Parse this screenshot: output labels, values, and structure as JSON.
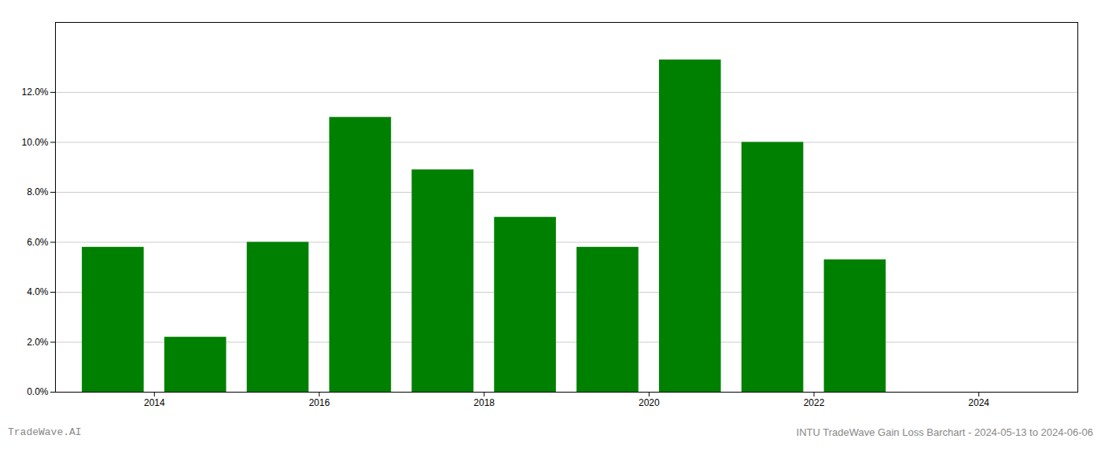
{
  "chart_data": {
    "type": "bar",
    "title": "INTU TradeWave Gain Loss Barchart - 2024-05-13 to 2024-06-06",
    "annotations": [
      "TradeWave.AI"
    ],
    "x": [
      2013,
      2014,
      2015,
      2016,
      2017,
      2018,
      2019,
      2020,
      2021,
      2022
    ],
    "values": [
      0.058,
      0.022,
      0.06,
      0.11,
      0.089,
      0.07,
      0.058,
      0.133,
      0.1,
      0.053
    ],
    "color": "#008000",
    "xlim": [
      2012.3,
      2024.7
    ],
    "xticks": [
      {
        "value": 2013.5,
        "label": "2014"
      },
      {
        "value": 2015.5,
        "label": "2016"
      },
      {
        "value": 2017.5,
        "label": "2018"
      },
      {
        "value": 2019.5,
        "label": "2020"
      },
      {
        "value": 2021.5,
        "label": "2022"
      },
      {
        "value": 2023.5,
        "label": "2024"
      }
    ],
    "ylim": [
      0.0,
      0.148
    ],
    "yticks": [
      {
        "value": 0.0,
        "label": "0.0%"
      },
      {
        "value": 0.02,
        "label": "2.0%"
      },
      {
        "value": 0.04,
        "label": "4.0%"
      },
      {
        "value": 0.06,
        "label": "6.0%"
      },
      {
        "value": 0.08,
        "label": "8.0%"
      },
      {
        "value": 0.1,
        "label": "10.0%"
      },
      {
        "value": 0.12,
        "label": "12.0%"
      }
    ],
    "grid": true
  }
}
